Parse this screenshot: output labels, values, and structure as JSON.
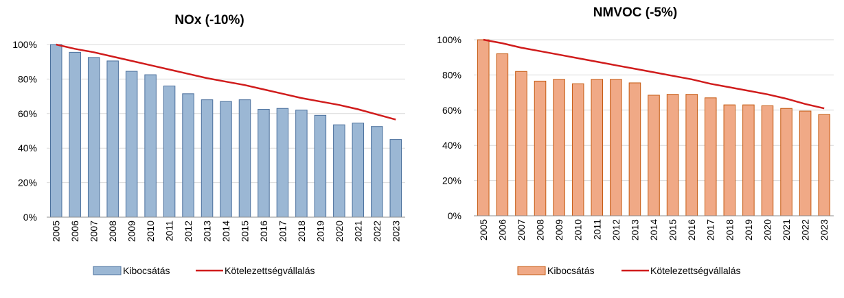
{
  "chart_data": [
    {
      "id": "nox",
      "type": "bar",
      "title": "NOx (-10%)",
      "categories": [
        "2005",
        "2006",
        "2007",
        "2008",
        "2009",
        "2010",
        "2011",
        "2012",
        "2013",
        "2014",
        "2015",
        "2016",
        "2017",
        "2018",
        "2019",
        "2020",
        "2021",
        "2022",
        "2023"
      ],
      "ylim": [
        0,
        100
      ],
      "yticks": [
        "0%",
        "20%",
        "40%",
        "60%",
        "80%",
        "100%"
      ],
      "grid": true,
      "legend_position": "bottom",
      "colors": {
        "bar_fill": "#9bb7d4",
        "bar_stroke": "#4a6f9c",
        "line": "#d01c1c"
      },
      "series": [
        {
          "name": "Kibocsátás",
          "kind": "bar",
          "values": [
            100,
            95.5,
            92.5,
            90.5,
            84.5,
            82.5,
            76,
            71.5,
            68,
            67,
            68,
            62.5,
            63,
            62,
            59,
            53.5,
            54.5,
            52.5,
            45
          ]
        },
        {
          "name": "Kötelezettségvállalás",
          "kind": "line",
          "values": [
            100,
            97.5,
            95.5,
            93,
            90.5,
            88,
            85.5,
            83,
            80.5,
            78.5,
            76.5,
            74,
            71.5,
            69,
            67,
            65,
            62.5,
            59.5,
            56.5
          ]
        }
      ]
    },
    {
      "id": "nmvoc",
      "type": "bar",
      "title": "NMVOC (-5%)",
      "categories": [
        "2005",
        "2006",
        "2007",
        "2008",
        "2009",
        "2010",
        "2011",
        "2012",
        "2013",
        "2014",
        "2015",
        "2016",
        "2017",
        "2018",
        "2019",
        "2020",
        "2021",
        "2022",
        "2023"
      ],
      "ylim": [
        0,
        100
      ],
      "yticks": [
        "0%",
        "20%",
        "40%",
        "60%",
        "80%",
        "100%"
      ],
      "grid": true,
      "legend_position": "bottom",
      "colors": {
        "bar_fill": "#f0a986",
        "bar_stroke": "#c55a11",
        "line": "#d01c1c"
      },
      "series": [
        {
          "name": "Kibocsátás",
          "kind": "bar",
          "values": [
            100,
            92,
            82,
            76.5,
            77.5,
            75,
            77.5,
            77.5,
            75.5,
            68.5,
            69,
            69,
            67,
            63,
            63,
            62.5,
            61,
            59.5,
            57.5
          ]
        },
        {
          "name": "Kötelezettségvállalás",
          "kind": "line",
          "values": [
            100,
            98,
            95.5,
            93.5,
            91.5,
            89.5,
            87.5,
            85.5,
            83.5,
            81.5,
            79.5,
            77.5,
            75,
            73,
            71,
            69,
            66.5,
            63.5,
            61
          ]
        }
      ]
    }
  ]
}
